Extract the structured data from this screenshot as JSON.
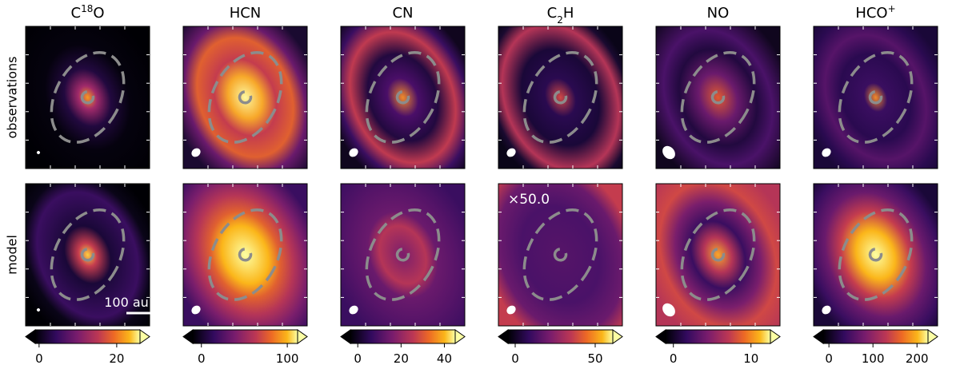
{
  "columns": [
    {
      "title": [
        {
          "text": "C"
        },
        {
          "text": "18",
          "script": "super"
        },
        {
          "text": "O"
        }
      ],
      "colorbar": {
        "lim": [
          -1,
          26
        ],
        "ticks": [
          0,
          20
        ]
      }
    },
    {
      "title": [
        {
          "text": "HCN"
        }
      ],
      "colorbar": {
        "lim": [
          -10,
          112
        ],
        "ticks": [
          0,
          100
        ]
      }
    },
    {
      "title": [
        {
          "text": "CN"
        }
      ],
      "colorbar": {
        "lim": [
          -3.4,
          45
        ],
        "ticks": [
          0,
          20,
          40
        ]
      }
    },
    {
      "title": [
        {
          "text": "C"
        },
        {
          "text": "2",
          "script": "sub"
        },
        {
          "text": "H"
        }
      ],
      "colorbar": {
        "lim": [
          -4.5,
          61
        ],
        "ticks": [
          0,
          50
        ]
      }
    },
    {
      "title": [
        {
          "text": "NO"
        }
      ],
      "colorbar": {
        "lim": [
          -1,
          12.5
        ],
        "ticks": [
          0,
          10
        ]
      }
    },
    {
      "title": [
        {
          "text": "HCO"
        },
        {
          "text": "+",
          "script": "super"
        }
      ],
      "colorbar": {
        "lim": [
          -13,
          225
        ],
        "ticks": [
          0,
          100,
          200
        ]
      }
    }
  ],
  "row_labels": [
    "observations",
    "model"
  ],
  "annotations": {
    "scale_bar": "100 au",
    "factor": "×50.0"
  }
}
